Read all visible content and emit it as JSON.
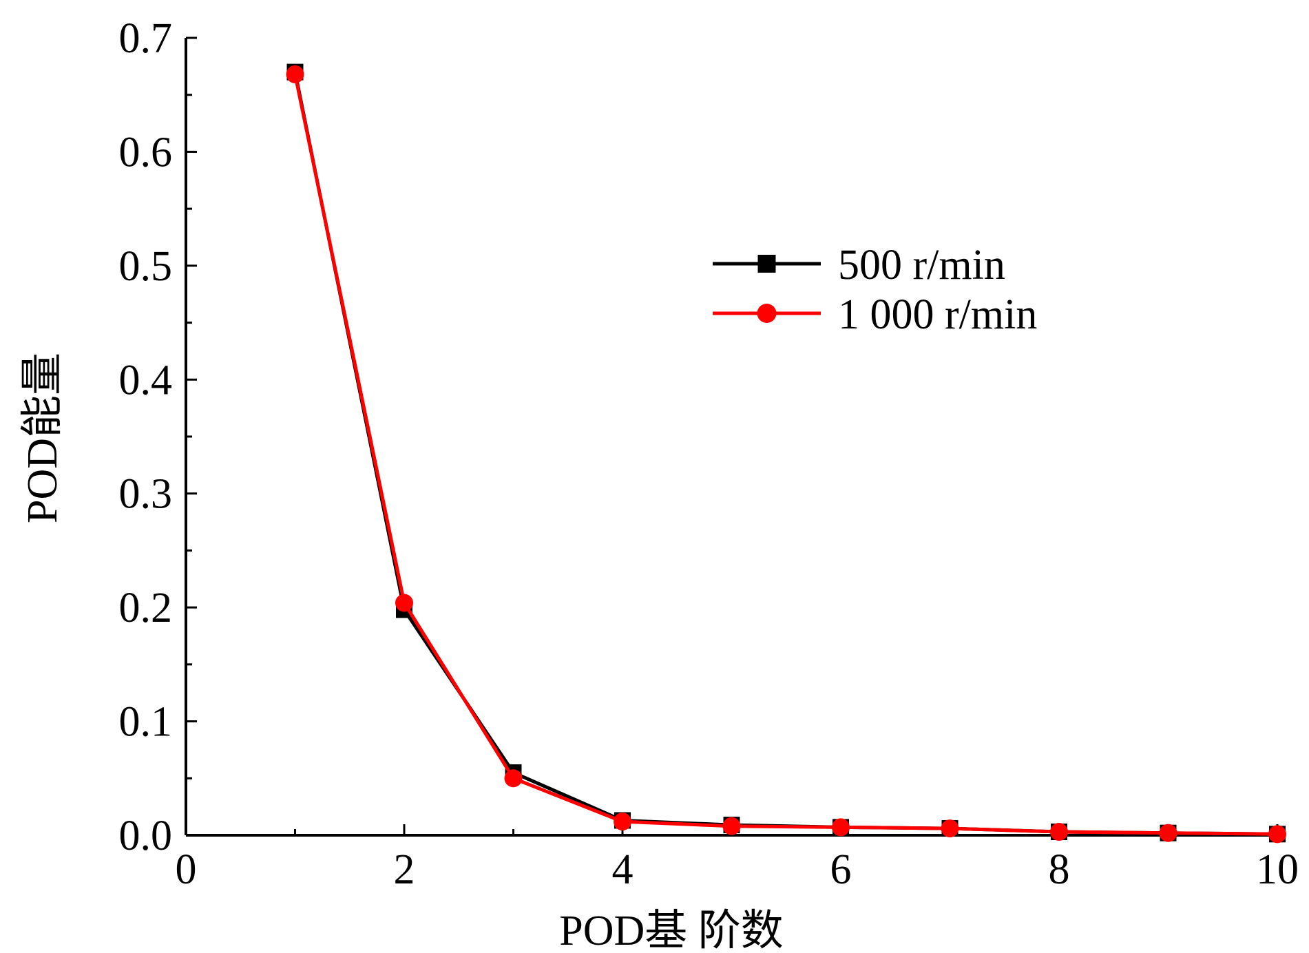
{
  "chart_data": {
    "type": "line",
    "title": "",
    "xlabel": "POD基 阶数",
    "ylabel": "POD能量",
    "xlim": [
      0,
      10
    ],
    "ylim": [
      0,
      0.7
    ],
    "x_ticks": [
      "0",
      "2",
      "4",
      "6",
      "8",
      "10"
    ],
    "y_ticks": [
      "0.0",
      "0.1",
      "0.2",
      "0.3",
      "0.4",
      "0.5",
      "0.6",
      "0.7"
    ],
    "grid": false,
    "legend_position": "upper-right",
    "x": [
      1,
      2,
      3,
      4,
      5,
      6,
      7,
      8,
      9,
      10
    ],
    "series": [
      {
        "name": "500 r/min",
        "color": "#000000",
        "marker": "square",
        "values": [
          0.67,
          0.198,
          0.055,
          0.013,
          0.009,
          0.007,
          0.006,
          0.003,
          0.002,
          0.001
        ]
      },
      {
        "name": "1 000 r/min",
        "color": "#ff0000",
        "marker": "circle",
        "values": [
          0.668,
          0.204,
          0.05,
          0.012,
          0.008,
          0.007,
          0.006,
          0.003,
          0.002,
          0.001
        ]
      }
    ]
  }
}
